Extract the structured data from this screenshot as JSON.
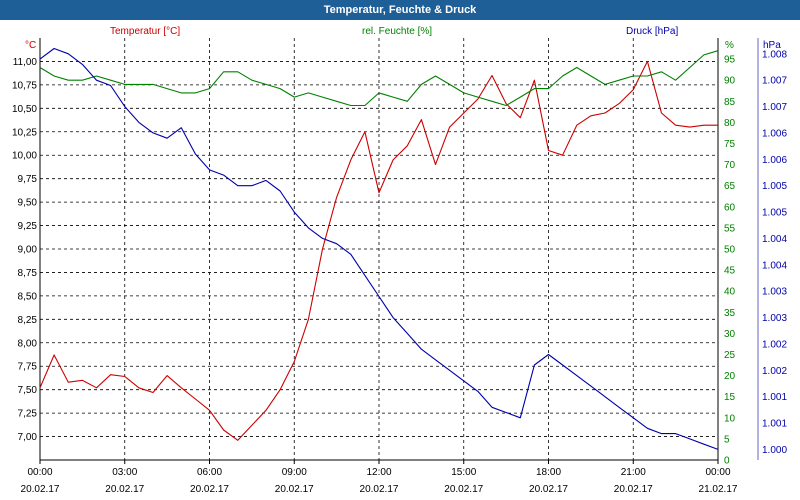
{
  "window": {
    "title": "Temperatur, Feuchte & Druck"
  },
  "chart_data": {
    "type": "line",
    "title": "Temperatur, Feuchte & Druck",
    "grid": true,
    "x_tick_times": [
      "00:00",
      "03:00",
      "06:00",
      "09:00",
      "12:00",
      "15:00",
      "18:00",
      "21:00",
      "00:00"
    ],
    "x_tick_dates": [
      "20.02.17",
      "20.02.17",
      "20.02.17",
      "20.02.17",
      "20.02.17",
      "20.02.17",
      "20.02.17",
      "20.02.17",
      "21.02.17"
    ],
    "x_hours": [
      0,
      0.5,
      1,
      1.5,
      2,
      2.5,
      3,
      3.5,
      4,
      4.5,
      5,
      5.5,
      6,
      6.5,
      7,
      7.5,
      8,
      8.5,
      9,
      9.5,
      10,
      10.5,
      11,
      11.5,
      12,
      12.5,
      13,
      13.5,
      14,
      14.5,
      15,
      15.5,
      16,
      16.5,
      17,
      17.5,
      18,
      18.5,
      19,
      19.5,
      20,
      20.5,
      21,
      21.5,
      22,
      22.5,
      23,
      23.5,
      24
    ],
    "series": [
      {
        "name": "Temperatur [°C]",
        "axis": "left",
        "color": "#cc0000",
        "values": [
          7.52,
          7.87,
          7.58,
          7.6,
          7.52,
          7.66,
          7.64,
          7.52,
          7.47,
          7.65,
          7.52,
          7.4,
          7.28,
          7.07,
          6.96,
          7.12,
          7.28,
          7.5,
          7.8,
          8.25,
          9.0,
          9.55,
          9.95,
          10.25,
          9.6,
          9.95,
          10.1,
          10.38,
          9.9,
          10.3,
          10.45,
          10.6,
          10.85,
          10.55,
          10.4,
          10.8,
          10.05,
          10.0,
          10.32,
          10.42,
          10.45,
          10.55,
          10.7,
          11.0,
          10.45,
          10.32,
          10.3,
          10.32,
          10.32
        ],
        "ylim": [
          6.75,
          11.25
        ]
      },
      {
        "name": "rel. Feuchte [%]",
        "axis": "right1",
        "color": "#008000",
        "values": [
          93,
          91,
          90,
          90,
          91,
          90,
          89,
          89,
          89,
          88,
          87,
          87,
          88,
          92,
          92,
          90,
          89,
          88,
          86,
          87,
          86,
          85,
          84,
          84,
          87,
          86,
          85,
          89,
          91,
          89,
          87,
          86,
          85,
          84,
          86,
          88,
          88,
          91,
          93,
          91,
          89,
          90,
          91,
          91,
          92,
          90,
          93,
          96,
          97
        ],
        "ylim": [
          0,
          100
        ]
      },
      {
        "name": "Druck [hPa]",
        "axis": "right2",
        "color": "#0000aa",
        "values": [
          1007.4,
          1007.6,
          1007.5,
          1007.3,
          1007.0,
          1006.9,
          1006.5,
          1006.2,
          1006.0,
          1005.9,
          1006.1,
          1005.6,
          1005.3,
          1005.2,
          1005.0,
          1005.0,
          1005.1,
          1004.9,
          1004.5,
          1004.2,
          1004.0,
          1003.9,
          1003.7,
          1003.3,
          1002.9,
          1002.5,
          1002.2,
          1001.9,
          1001.7,
          1001.5,
          1001.3,
          1001.1,
          1000.8,
          1000.7,
          1000.6,
          1001.6,
          1001.8,
          1001.6,
          1001.4,
          1001.2,
          1001.0,
          1000.8,
          1000.6,
          1000.4,
          1000.3,
          1000.3,
          1000.2,
          1000.1,
          1000.0
        ],
        "ylim": [
          999.8,
          1007.8
        ]
      }
    ],
    "axes": {
      "left": {
        "label": "Temperatur [°C]",
        "unit": "°C",
        "ticks": [
          7.0,
          7.25,
          7.5,
          7.75,
          8.0,
          8.25,
          8.5,
          8.75,
          9.0,
          9.25,
          9.5,
          9.75,
          10.0,
          10.25,
          10.5,
          10.75,
          11.0
        ],
        "tick_labels": [
          "7,00",
          "7,25",
          "7,50",
          "7,75",
          "8,00",
          "8,25",
          "8,50",
          "8,75",
          "9,00",
          "9,25",
          "9,50",
          "9,75",
          "10,00",
          "10,25",
          "10,50",
          "10,75",
          "11,00"
        ]
      },
      "right1": {
        "label": "rel. Feuchte [%]",
        "unit": "%",
        "ticks": [
          0,
          5,
          10,
          15,
          20,
          25,
          30,
          35,
          40,
          45,
          50,
          55,
          60,
          65,
          70,
          75,
          80,
          85,
          90,
          95
        ],
        "tick_labels": [
          "0",
          "5",
          "10",
          "15",
          "20",
          "25",
          "30",
          "35",
          "40",
          "45",
          "50",
          "55",
          "60",
          "65",
          "70",
          "75",
          "80",
          "85",
          "90",
          "95"
        ]
      },
      "right2": {
        "label": "Druck [hPa]",
        "unit": "hPa",
        "ticks": [
          1000.0,
          1000.5,
          1001.0,
          1001.5,
          1002.0,
          1002.5,
          1003.0,
          1003.5,
          1004.0,
          1004.5,
          1005.0,
          1005.5,
          1006.0,
          1006.5,
          1007.0,
          1007.5
        ],
        "tick_labels": [
          "1.000",
          "1.001",
          "1.001",
          "1.002",
          "1.002",
          "1.003",
          "1.003",
          "1.004",
          "1.004",
          "1.005",
          "1.005",
          "1.006",
          "1.006",
          "1.007",
          "1.007",
          "1.008"
        ]
      }
    }
  }
}
